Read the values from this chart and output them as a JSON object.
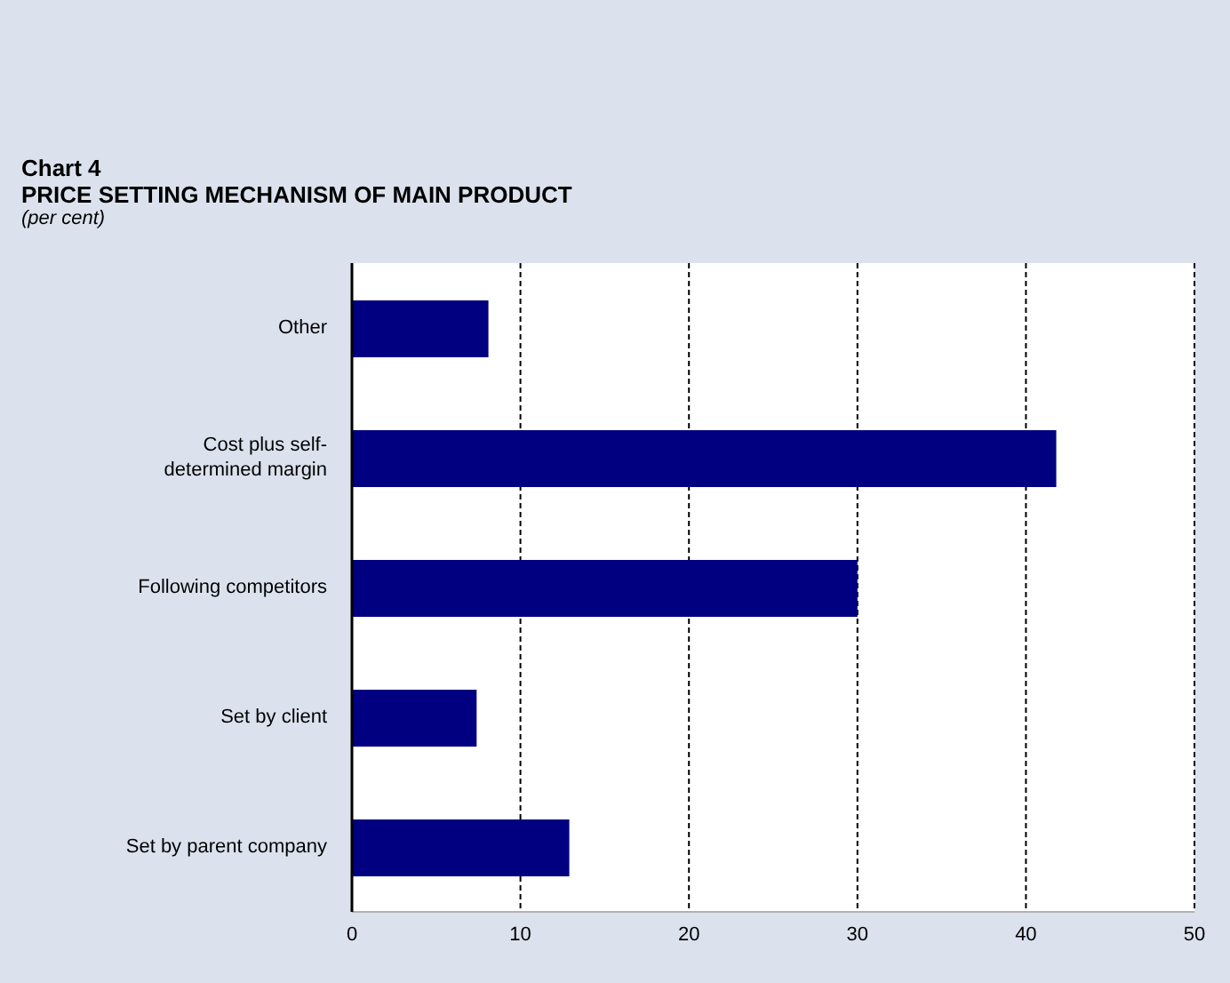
{
  "chart_data": {
    "type": "bar",
    "orientation": "horizontal",
    "title": "Chart 4",
    "subtitle": "PRICE SETTING MECHANISM OF MAIN PRODUCT",
    "annotations": [
      "(per cent)"
    ],
    "categories": [
      "Other",
      "Cost plus self-determined margin",
      "Following competitors",
      "Set by client",
      "Set by parent company"
    ],
    "values": [
      8.1,
      41.8,
      30.0,
      7.4,
      12.9
    ],
    "color": "#000080",
    "xlim": [
      0,
      50
    ],
    "xticks": [
      0,
      10,
      20,
      30,
      40,
      50
    ],
    "grid": "x",
    "legend": false
  }
}
